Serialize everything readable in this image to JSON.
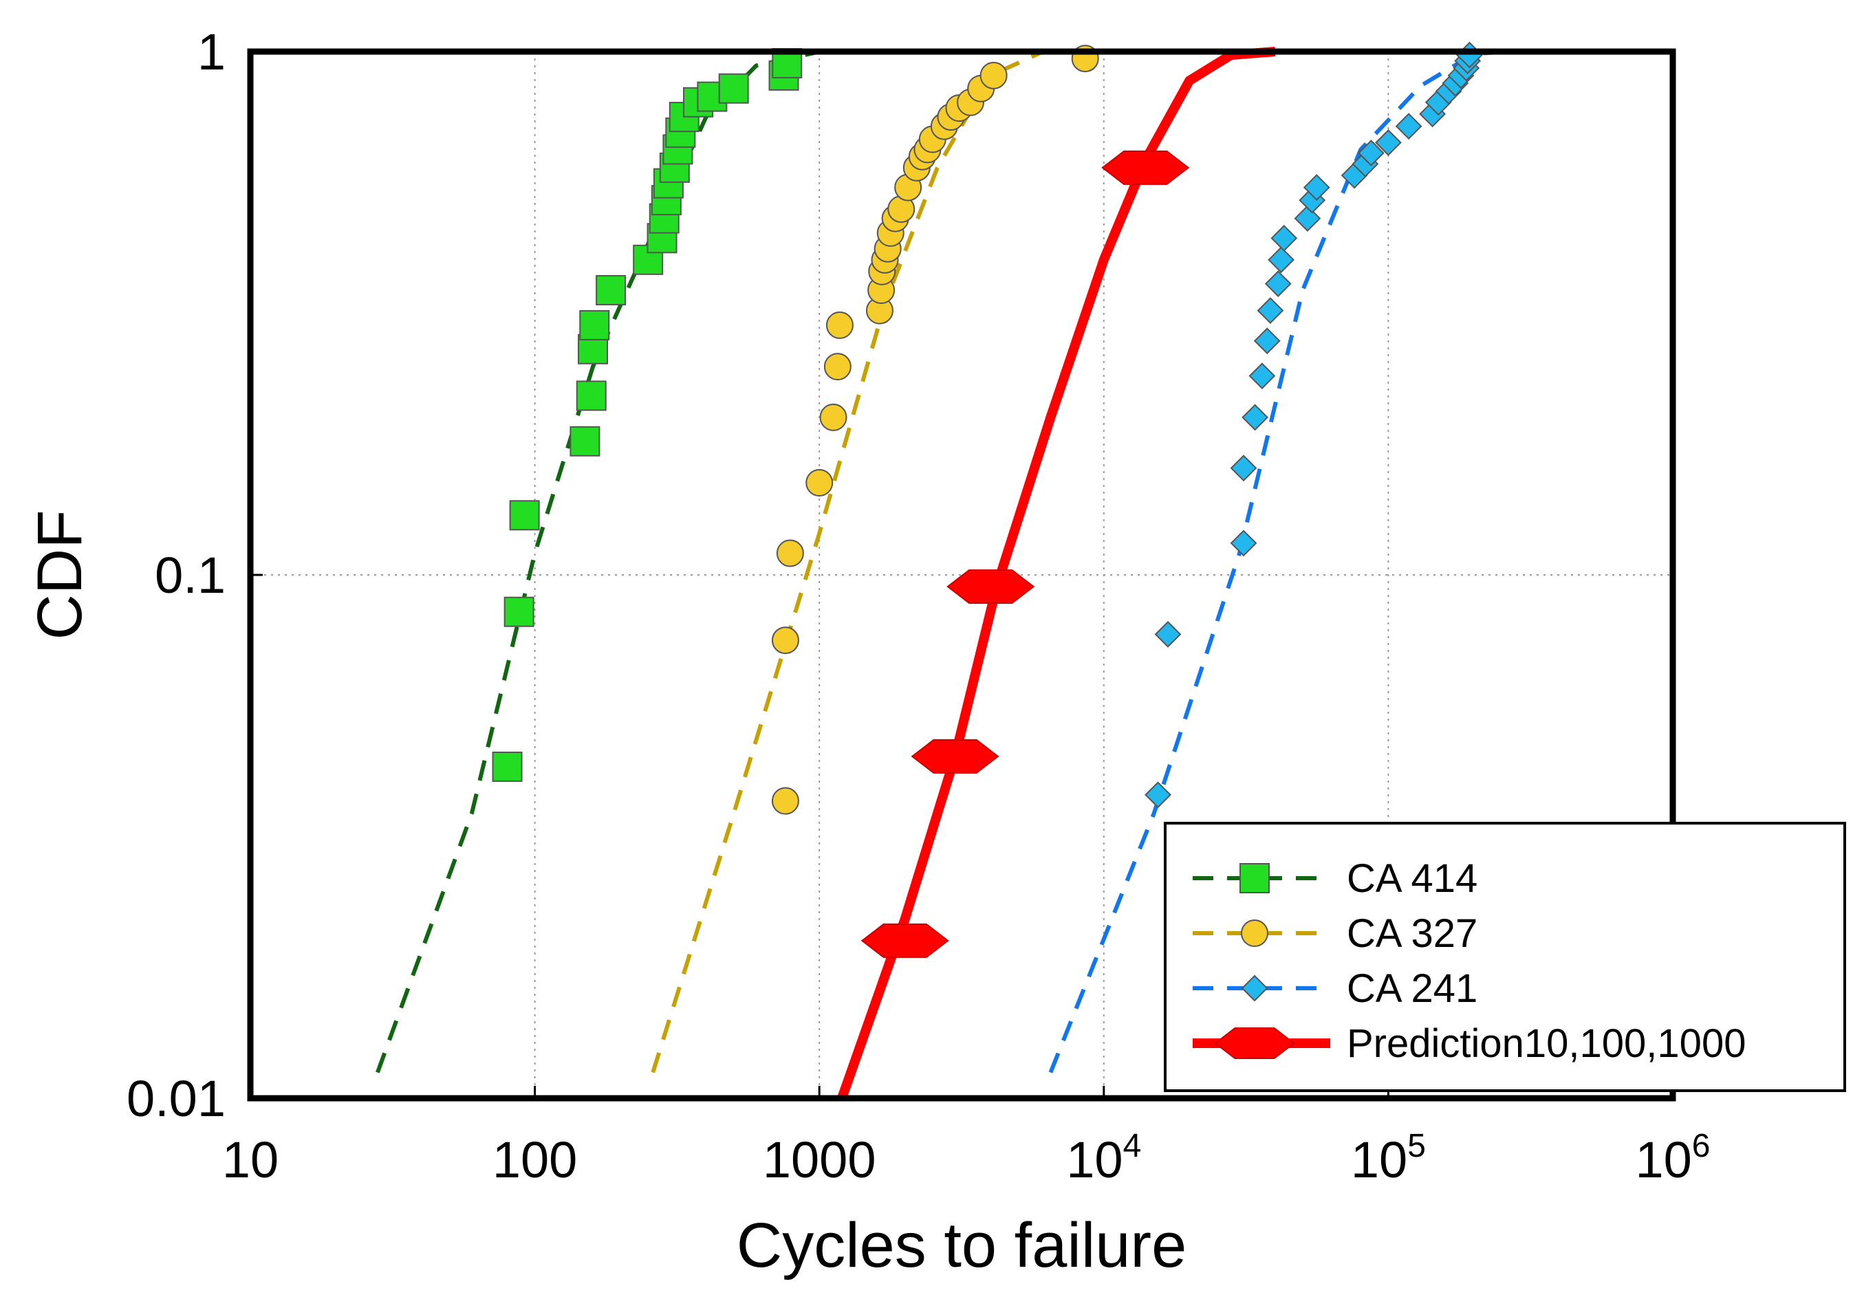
{
  "chart_data": {
    "type": "scatter",
    "title": "",
    "xlabel": "Cycles to failure",
    "ylabel": "CDF",
    "xscale": "log",
    "yscale": "log",
    "xlim": [
      10,
      1000000
    ],
    "ylim": [
      0.01,
      1
    ],
    "grid": true,
    "legend_position": "bottom-right",
    "x_ticks": [
      {
        "value": 10,
        "label": "10"
      },
      {
        "value": 100,
        "label": "100"
      },
      {
        "value": 1000,
        "label": "1000"
      },
      {
        "value": 10000,
        "base": "10",
        "exp": "4"
      },
      {
        "value": 100000,
        "base": "10",
        "exp": "5"
      },
      {
        "value": 1000000,
        "base": "10",
        "exp": "6"
      }
    ],
    "y_ticks": [
      {
        "value": 0.01,
        "label": "0.01"
      },
      {
        "value": 0.1,
        "label": "0.1"
      },
      {
        "value": 1,
        "label": "1"
      }
    ],
    "series": [
      {
        "name": "CA 414",
        "marker": "square",
        "line": "dashed",
        "marker_color": "#22dd22",
        "line_color": "#116611",
        "points": [
          [
            80,
            0.043
          ],
          [
            88,
            0.085
          ],
          [
            92,
            0.13
          ],
          [
            150,
            0.18
          ],
          [
            158,
            0.22
          ],
          [
            160,
            0.27
          ],
          [
            162,
            0.3
          ],
          [
            185,
            0.35
          ],
          [
            250,
            0.4
          ],
          [
            280,
            0.44
          ],
          [
            285,
            0.48
          ],
          [
            290,
            0.52
          ],
          [
            295,
            0.56
          ],
          [
            310,
            0.6
          ],
          [
            318,
            0.65
          ],
          [
            325,
            0.7
          ],
          [
            335,
            0.75
          ],
          [
            375,
            0.8
          ],
          [
            420,
            0.82
          ],
          [
            500,
            0.85
          ],
          [
            750,
            0.9
          ],
          [
            770,
            0.95
          ]
        ],
        "fit": [
          [
            28,
            0.0112
          ],
          [
            60,
            0.035
          ],
          [
            100,
            0.11
          ],
          [
            160,
            0.25
          ],
          [
            260,
            0.45
          ],
          [
            400,
            0.75
          ],
          [
            600,
            0.94
          ],
          [
            1000,
            0.999
          ]
        ]
      },
      {
        "name": "CA 327",
        "marker": "circle",
        "line": "dashed",
        "marker_color": "#f5cc2a",
        "line_color": "#c8a000",
        "points": [
          [
            760,
            0.037
          ],
          [
            760,
            0.075
          ],
          [
            790,
            0.11
          ],
          [
            1000,
            0.15
          ],
          [
            1120,
            0.2
          ],
          [
            1160,
            0.25
          ],
          [
            1180,
            0.3
          ],
          [
            1630,
            0.32
          ],
          [
            1650,
            0.35
          ],
          [
            1660,
            0.38
          ],
          [
            1700,
            0.4
          ],
          [
            1740,
            0.42
          ],
          [
            1780,
            0.45
          ],
          [
            1850,
            0.48
          ],
          [
            1940,
            0.5
          ],
          [
            2050,
            0.55
          ],
          [
            2200,
            0.6
          ],
          [
            2300,
            0.63
          ],
          [
            2400,
            0.65
          ],
          [
            2500,
            0.68
          ],
          [
            2750,
            0.72
          ],
          [
            2900,
            0.75
          ],
          [
            3100,
            0.78
          ],
          [
            3400,
            0.8
          ],
          [
            3700,
            0.85
          ],
          [
            4100,
            0.9
          ],
          [
            8600,
            0.97
          ]
        ],
        "fit": [
          [
            260,
            0.0112
          ],
          [
            500,
            0.035
          ],
          [
            1000,
            0.12
          ],
          [
            1700,
            0.33
          ],
          [
            2600,
            0.6
          ],
          [
            4000,
            0.9
          ],
          [
            6000,
            0.995
          ]
        ]
      },
      {
        "name": "CA 241",
        "marker": "diamond",
        "line": "dashed",
        "marker_color": "#22b8ee",
        "line_color": "#1177ee",
        "points": [
          [
            15500,
            0.038
          ],
          [
            16800,
            0.077
          ],
          [
            31000,
            0.115
          ],
          [
            31000,
            0.16
          ],
          [
            34000,
            0.2
          ],
          [
            36000,
            0.24
          ],
          [
            37500,
            0.28
          ],
          [
            38500,
            0.32
          ],
          [
            41000,
            0.36
          ],
          [
            42000,
            0.4
          ],
          [
            43000,
            0.44
          ],
          [
            52000,
            0.48
          ],
          [
            54000,
            0.52
          ],
          [
            56000,
            0.55
          ],
          [
            76000,
            0.58
          ],
          [
            83000,
            0.61
          ],
          [
            87000,
            0.64
          ],
          [
            100000,
            0.67
          ],
          [
            118000,
            0.72
          ],
          [
            143000,
            0.76
          ],
          [
            150000,
            0.8
          ],
          [
            163000,
            0.84
          ],
          [
            172000,
            0.87
          ],
          [
            180000,
            0.9
          ],
          [
            188000,
            0.93
          ],
          [
            190000,
            0.96
          ],
          [
            193000,
            0.985
          ]
        ],
        "fit": [
          [
            6500,
            0.0112
          ],
          [
            15000,
            0.035
          ],
          [
            30000,
            0.11
          ],
          [
            50000,
            0.35
          ],
          [
            80000,
            0.65
          ],
          [
            130000,
            0.86
          ],
          [
            200000,
            0.99
          ],
          [
            260000,
            0.999
          ]
        ]
      },
      {
        "name": "Prediction10,100,1000",
        "marker": "hexagon",
        "line": "solid",
        "marker_color": "#ff0000",
        "line_color": "#ff0000",
        "points": [
          [
            2000,
            0.02
          ],
          [
            3000,
            0.045
          ],
          [
            4000,
            0.095
          ],
          [
            14000,
            0.6
          ]
        ],
        "fit": [
          [
            1200,
            0.01
          ],
          [
            2000,
            0.022
          ],
          [
            3000,
            0.045
          ],
          [
            4200,
            0.095
          ],
          [
            6500,
            0.2
          ],
          [
            10000,
            0.4
          ],
          [
            14000,
            0.62
          ],
          [
            20000,
            0.88
          ],
          [
            28000,
            0.985
          ],
          [
            40000,
            1.0
          ]
        ]
      }
    ]
  }
}
